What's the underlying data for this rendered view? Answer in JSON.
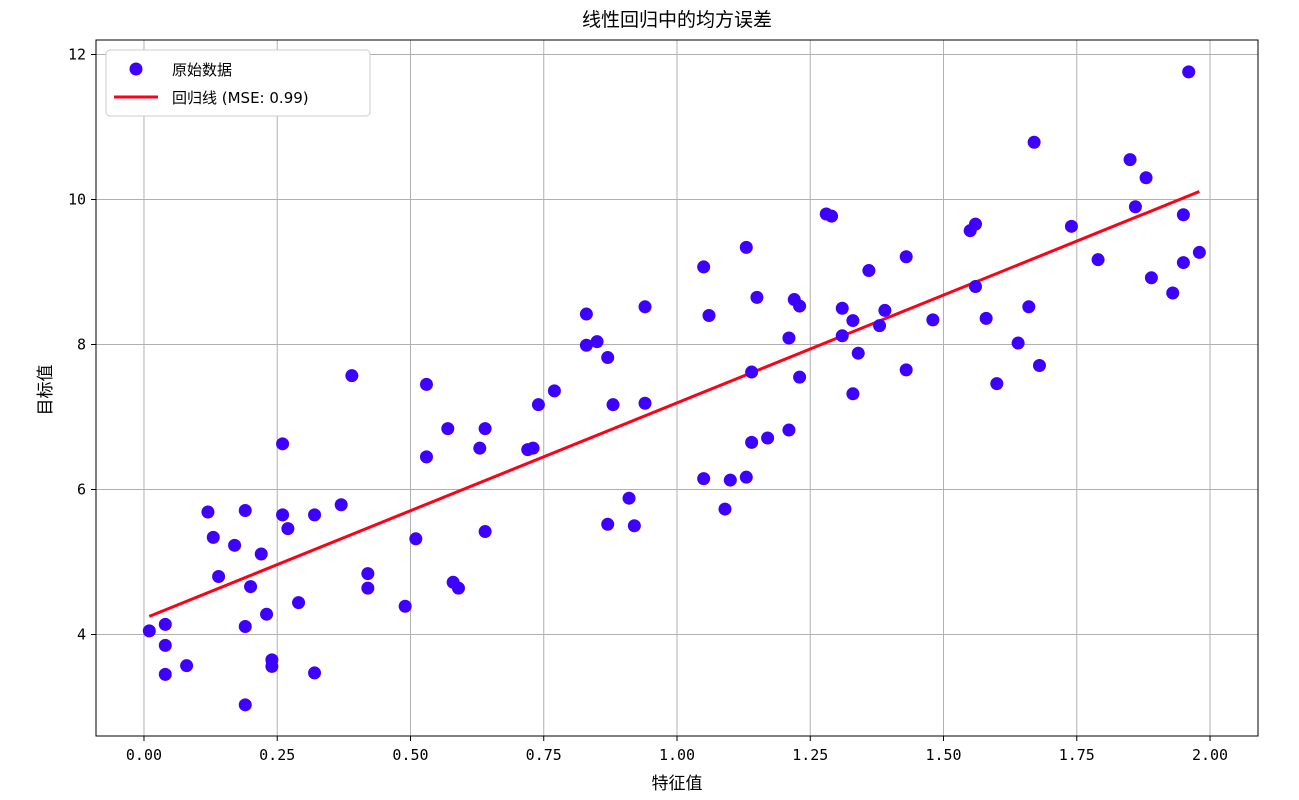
{
  "chart_data": {
    "type": "scatter",
    "title": "线性回归中的均方误差",
    "xlabel": "特征值",
    "ylabel": "目标值",
    "xlim": [
      -0.09,
      2.09
    ],
    "ylim": [
      2.6,
      12.2
    ],
    "xticks": [
      0.0,
      0.25,
      0.5,
      0.75,
      1.0,
      1.25,
      1.5,
      1.75,
      2.0
    ],
    "xtick_labels": [
      "0.00",
      "0.25",
      "0.50",
      "0.75",
      "1.00",
      "1.25",
      "1.50",
      "1.75",
      "2.00"
    ],
    "yticks": [
      4,
      6,
      8,
      10,
      12
    ],
    "ytick_labels": [
      "4",
      "6",
      "8",
      "10",
      "12"
    ],
    "grid": true,
    "legend_position": "upper-left",
    "colors": {
      "points": "#3d00ff",
      "line": "#ff0018"
    },
    "series": [
      {
        "name": "原始数据",
        "kind": "scatter",
        "points": [
          [
            0.01,
            4.05
          ],
          [
            0.04,
            3.85
          ],
          [
            0.04,
            4.14
          ],
          [
            0.04,
            3.45
          ],
          [
            0.08,
            3.57
          ],
          [
            0.12,
            5.69
          ],
          [
            0.13,
            5.34
          ],
          [
            0.14,
            4.8
          ],
          [
            0.17,
            5.23
          ],
          [
            0.19,
            5.71
          ],
          [
            0.19,
            4.11
          ],
          [
            0.19,
            3.03
          ],
          [
            0.2,
            4.66
          ],
          [
            0.22,
            5.11
          ],
          [
            0.23,
            4.28
          ],
          [
            0.24,
            3.65
          ],
          [
            0.24,
            3.56
          ],
          [
            0.26,
            6.63
          ],
          [
            0.26,
            5.65
          ],
          [
            0.27,
            5.46
          ],
          [
            0.29,
            4.44
          ],
          [
            0.32,
            5.65
          ],
          [
            0.32,
            3.47
          ],
          [
            0.37,
            5.79
          ],
          [
            0.39,
            7.57
          ],
          [
            0.42,
            4.84
          ],
          [
            0.42,
            4.64
          ],
          [
            0.49,
            4.39
          ],
          [
            0.51,
            5.32
          ],
          [
            0.53,
            7.45
          ],
          [
            0.53,
            6.45
          ],
          [
            0.57,
            6.84
          ],
          [
            0.58,
            4.72
          ],
          [
            0.59,
            4.64
          ],
          [
            0.63,
            6.57
          ],
          [
            0.64,
            6.84
          ],
          [
            0.64,
            5.42
          ],
          [
            0.72,
            6.55
          ],
          [
            0.73,
            6.57
          ],
          [
            0.74,
            7.17
          ],
          [
            0.77,
            7.36
          ],
          [
            0.83,
            8.42
          ],
          [
            0.83,
            7.99
          ],
          [
            0.85,
            8.04
          ],
          [
            0.87,
            7.82
          ],
          [
            0.88,
            7.17
          ],
          [
            0.87,
            5.52
          ],
          [
            0.91,
            5.88
          ],
          [
            0.92,
            5.5
          ],
          [
            0.94,
            8.52
          ],
          [
            0.94,
            7.19
          ],
          [
            1.05,
            9.07
          ],
          [
            1.05,
            6.15
          ],
          [
            1.06,
            8.4
          ],
          [
            1.09,
            5.73
          ],
          [
            1.1,
            6.13
          ],
          [
            1.13,
            9.34
          ],
          [
            1.14,
            7.62
          ],
          [
            1.14,
            6.65
          ],
          [
            1.13,
            6.17
          ],
          [
            1.15,
            8.65
          ],
          [
            1.17,
            6.71
          ],
          [
            1.21,
            8.09
          ],
          [
            1.21,
            6.82
          ],
          [
            1.22,
            8.62
          ],
          [
            1.23,
            8.53
          ],
          [
            1.23,
            7.55
          ],
          [
            1.28,
            9.8
          ],
          [
            1.29,
            9.77
          ],
          [
            1.31,
            8.5
          ],
          [
            1.31,
            8.12
          ],
          [
            1.33,
            8.33
          ],
          [
            1.34,
            7.88
          ],
          [
            1.33,
            7.32
          ],
          [
            1.36,
            9.02
          ],
          [
            1.38,
            8.26
          ],
          [
            1.39,
            8.47
          ],
          [
            1.43,
            9.21
          ],
          [
            1.43,
            7.65
          ],
          [
            1.48,
            8.34
          ],
          [
            1.55,
            9.57
          ],
          [
            1.56,
            9.66
          ],
          [
            1.56,
            8.8
          ],
          [
            1.58,
            8.36
          ],
          [
            1.6,
            7.46
          ],
          [
            1.64,
            8.02
          ],
          [
            1.66,
            8.52
          ],
          [
            1.67,
            10.79
          ],
          [
            1.68,
            7.71
          ],
          [
            1.74,
            9.63
          ],
          [
            1.79,
            9.17
          ],
          [
            1.85,
            10.55
          ],
          [
            1.86,
            9.9
          ],
          [
            1.88,
            10.3
          ],
          [
            1.89,
            8.92
          ],
          [
            1.93,
            8.71
          ],
          [
            1.95,
            9.79
          ],
          [
            1.95,
            9.13
          ],
          [
            1.96,
            11.76
          ],
          [
            1.98,
            9.27
          ]
        ]
      },
      {
        "name": "回归线 (MSE: 0.99)",
        "kind": "line",
        "points": [
          [
            0.01,
            4.25
          ],
          [
            1.98,
            10.11
          ]
        ]
      }
    ]
  }
}
